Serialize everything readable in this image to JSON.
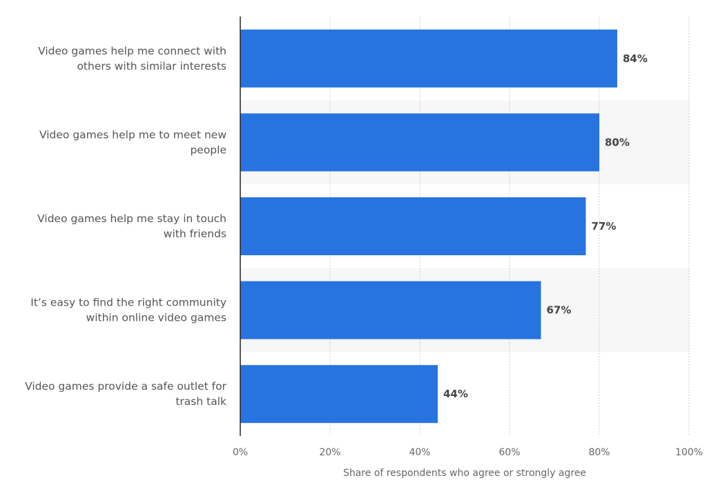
{
  "chart_data": {
    "type": "bar",
    "orientation": "horizontal",
    "categories": [
      [
        "Video games help me connect with",
        "others with similar interests"
      ],
      [
        "Video games help me to meet new",
        "people"
      ],
      [
        "Video games help me stay in touch",
        "with friends"
      ],
      [
        "It’s easy to find the right community",
        "within online video games"
      ],
      [
        "Video games provide a safe outlet for",
        "trash talk"
      ]
    ],
    "values": [
      84,
      80,
      77,
      67,
      44
    ],
    "value_labels": [
      "84%",
      "80%",
      "77%",
      "67%",
      "44%"
    ],
    "xlabel": "Share of respondents who agree or strongly agree",
    "ylabel": "",
    "xlim": [
      0,
      100
    ],
    "ticks": [
      0,
      20,
      40,
      60,
      80,
      100
    ],
    "tick_labels": [
      "0%",
      "20%",
      "40%",
      "60%",
      "80%",
      "100%"
    ],
    "grid": true,
    "bar_color": "#2774e0",
    "band_color": "#f7f7f7",
    "grid_color": "#cccccc",
    "axis_color": "#222222"
  }
}
